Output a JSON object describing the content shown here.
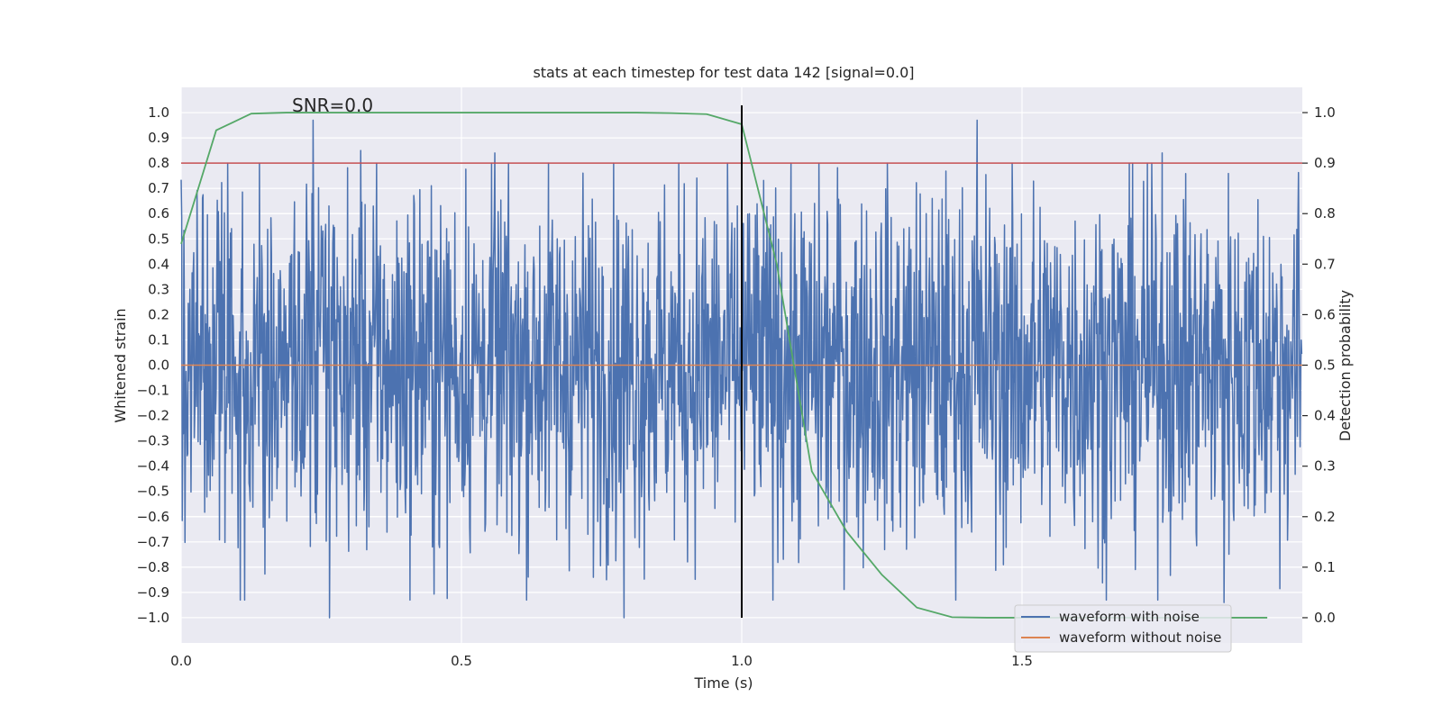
{
  "chart_data": {
    "type": "line",
    "title": "stats at each timestep for test data 142 [signal=0.0]",
    "xlabel": "Time (s)",
    "ylabel": "Whitened strain",
    "y2label": "Detection probability",
    "annotation": "SNR=0.0",
    "xlim": [
      0.0,
      2.0
    ],
    "ylim": [
      -1.1,
      1.1
    ],
    "y2lim": [
      -0.05,
      1.05
    ],
    "x_ticks": [
      0.0,
      0.5,
      1.0,
      1.5
    ],
    "x_tick_labels": [
      "0.0",
      "0.5",
      "1.0",
      "1.5"
    ],
    "y_ticks": [
      -1.0,
      -0.9,
      -0.8,
      -0.7,
      -0.6,
      -0.5,
      -0.4,
      -0.3,
      -0.2,
      -0.1,
      0.0,
      0.1,
      0.2,
      0.3,
      0.4,
      0.5,
      0.6,
      0.7,
      0.8,
      0.9,
      1.0
    ],
    "y_tick_labels": [
      "−1.0",
      "−0.9",
      "−0.8",
      "−0.7",
      "−0.6",
      "−0.5",
      "−0.4",
      "−0.3",
      "−0.2",
      "−0.1",
      "0.0",
      "0.1",
      "0.2",
      "0.3",
      "0.4",
      "0.5",
      "0.6",
      "0.7",
      "0.8",
      "0.9",
      "1.0"
    ],
    "y2_ticks": [
      0.0,
      0.1,
      0.2,
      0.3,
      0.4,
      0.5,
      0.6,
      0.7,
      0.8,
      0.9,
      1.0
    ],
    "y2_tick_labels": [
      "0.0",
      "0.1",
      "0.2",
      "0.3",
      "0.4",
      "0.5",
      "0.6",
      "0.7",
      "0.8",
      "0.9",
      "1.0"
    ],
    "grid": true,
    "legend_position": "lower-right",
    "series": [
      {
        "name": "waveform with noise",
        "axis": "left",
        "color": "#4c72b0",
        "style": "noise",
        "x_range": [
          0.0,
          2.0
        ],
        "y_range": [
          -1.0,
          1.0
        ],
        "peaks": [
          [
            0.235,
            0.97
          ],
          [
            0.265,
            -1.0
          ],
          [
            0.79,
            -1.0
          ],
          [
            1.42,
            0.97
          ],
          [
            0.32,
            0.85
          ],
          [
            1.75,
            0.84
          ],
          [
            0.56,
            0.84
          ],
          [
            1.86,
            -0.94
          ]
        ]
      },
      {
        "name": "waveform without noise",
        "axis": "left",
        "color": "#dd8452",
        "x": [
          0.0,
          2.0
        ],
        "y": [
          0.0,
          0.0
        ]
      },
      {
        "axis": "right",
        "color": "#55a868",
        "x": [
          0.0,
          0.0625,
          0.125,
          0.1875,
          0.25,
          0.3125,
          0.375,
          0.4375,
          0.5,
          0.5625,
          0.625,
          0.6875,
          0.75,
          0.8125,
          0.875,
          0.9375,
          1.0,
          1.0625,
          1.125,
          1.1875,
          1.25,
          1.3125,
          1.375,
          1.4375,
          1.5,
          1.5625,
          1.625,
          1.6875,
          1.75,
          1.8125,
          1.875,
          1.9375
        ],
        "y": [
          0.74,
          0.965,
          0.998,
          1.0,
          1.0,
          1.0,
          1.0,
          1.0,
          1.0,
          1.0,
          1.0,
          1.0,
          1.0,
          1.0,
          0.999,
          0.997,
          0.977,
          0.7,
          0.29,
          0.17,
          0.085,
          0.02,
          0.001,
          0.0,
          0.0,
          0.0,
          0.0,
          0.0,
          0.0,
          0.0,
          0.0,
          0.0
        ]
      },
      {
        "axis": "right",
        "color": "#c44e52",
        "style": "threshold",
        "y": 0.9
      },
      {
        "axis": "left",
        "color": "#000000",
        "style": "vertical-marker",
        "x": 1.0,
        "y_range": [
          -1.0,
          1.0
        ]
      }
    ]
  }
}
